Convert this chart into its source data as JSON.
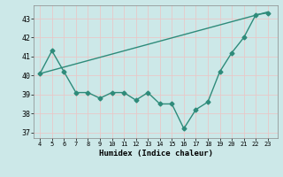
{
  "x": [
    4,
    5,
    6,
    7,
    8,
    9,
    10,
    11,
    12,
    13,
    14,
    15,
    16,
    17,
    18,
    19,
    20,
    21,
    22,
    23
  ],
  "y": [
    40.1,
    41.3,
    40.2,
    39.1,
    39.1,
    38.8,
    39.1,
    39.1,
    38.7,
    39.1,
    38.5,
    38.5,
    37.2,
    38.2,
    38.6,
    40.2,
    41.2,
    42.0,
    43.2,
    43.3
  ],
  "trend_x": [
    4,
    23
  ],
  "trend_y": [
    40.1,
    43.35
  ],
  "xlabel": "Humidex (Indice chaleur)",
  "xlim": [
    3.5,
    23.8
  ],
  "ylim": [
    36.7,
    43.7
  ],
  "yticks": [
    37,
    38,
    39,
    40,
    41,
    42,
    43
  ],
  "xticks": [
    4,
    5,
    6,
    7,
    8,
    9,
    10,
    11,
    12,
    13,
    14,
    15,
    16,
    17,
    18,
    19,
    20,
    21,
    22,
    23
  ],
  "line_color": "#2e8b7a",
  "bg_color": "#cce8e8",
  "grid_color": "#e8c8c8",
  "marker": "D",
  "marker_size": 2.5,
  "line_width": 1.0
}
